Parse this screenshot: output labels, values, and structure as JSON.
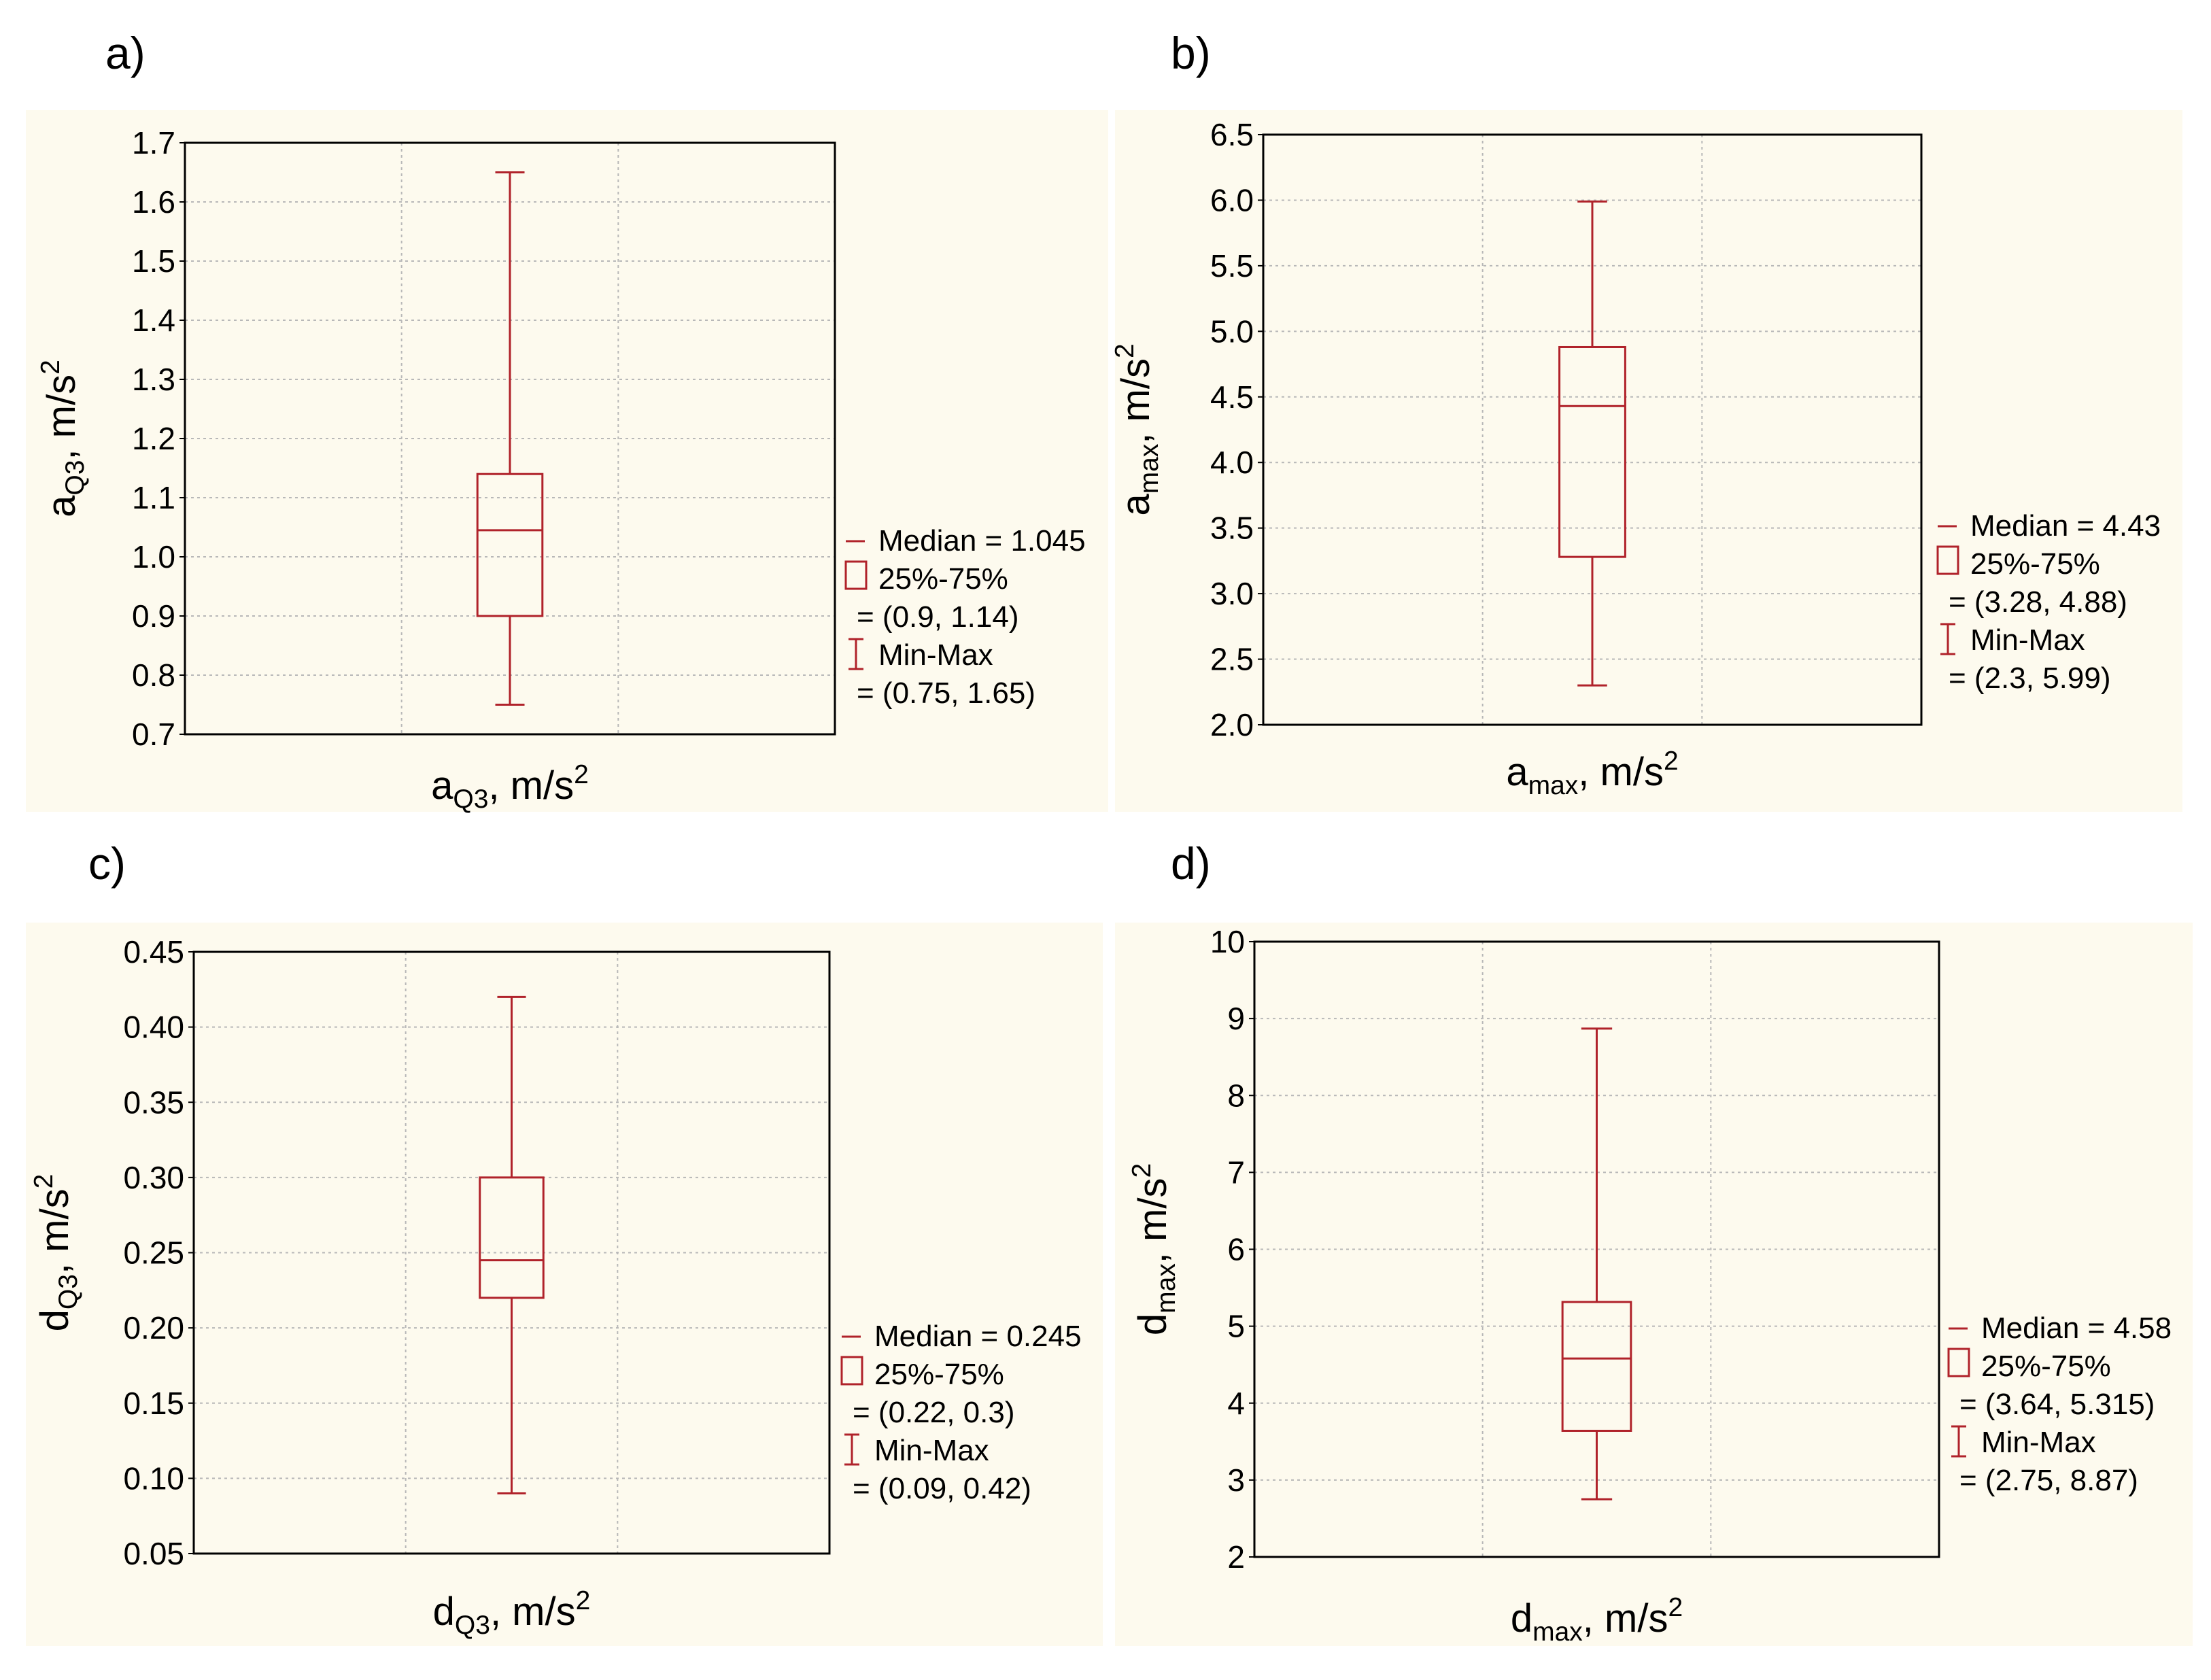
{
  "colors": {
    "box": "#b0222a",
    "background": "#fdfaee",
    "grid": "#b8b8b8",
    "frame": "#000000"
  },
  "chart_data": [
    {
      "id": "a",
      "panel_label": "a)",
      "type": "box",
      "ylabel": {
        "main": "a",
        "sub": "Q3",
        "rest": ", m/s",
        "sup": "2"
      },
      "xlabel": {
        "main": "a",
        "sub": "Q3",
        "rest": ", m/s",
        "sup": "2"
      },
      "ylim": [
        0.7,
        1.7
      ],
      "yticks": [
        "0.7",
        "0.8",
        "0.9",
        "1.0",
        "1.1",
        "1.2",
        "1.3",
        "1.4",
        "1.5",
        "1.6",
        "1.7"
      ],
      "median": 1.045,
      "q1": 0.9,
      "q3": 1.14,
      "min": 0.75,
      "max": 1.65,
      "legend": [
        "Median = 1.045",
        "25%-75%",
        "= (0.9, 1.14)",
        "Min-Max",
        "= (0.75, 1.65)"
      ]
    },
    {
      "id": "b",
      "panel_label": "b)",
      "type": "box",
      "ylabel": {
        "main": "a",
        "sub": "max",
        "rest": ", m/s",
        "sup": "2"
      },
      "xlabel": {
        "main": "a",
        "sub": "max",
        "rest": ", m/s",
        "sup": "2"
      },
      "ylim": [
        2.0,
        6.5
      ],
      "yticks": [
        "2.0",
        "2.5",
        "3.0",
        "3.5",
        "4.0",
        "4.5",
        "5.0",
        "5.5",
        "6.0",
        "6.5"
      ],
      "median": 4.43,
      "q1": 3.28,
      "q3": 4.88,
      "min": 2.3,
      "max": 5.99,
      "legend": [
        "Median = 4.43",
        "25%-75%",
        "= (3.28, 4.88)",
        "Min-Max",
        "= (2.3, 5.99)"
      ]
    },
    {
      "id": "c",
      "panel_label": "c)",
      "type": "box",
      "ylabel": {
        "main": "d",
        "sub": "Q3",
        "rest": ", m/s",
        "sup": "2"
      },
      "xlabel": {
        "main": "d",
        "sub": "Q3",
        "rest": ", m/s",
        "sup": "2"
      },
      "ylim": [
        0.05,
        0.45
      ],
      "yticks": [
        "0.05",
        "0.10",
        "0.15",
        "0.20",
        "0.25",
        "0.30",
        "0.35",
        "0.40",
        "0.45"
      ],
      "median": 0.245,
      "q1": 0.22,
      "q3": 0.3,
      "min": 0.09,
      "max": 0.42,
      "legend": [
        "Median = 0.245",
        "25%-75%",
        "= (0.22, 0.3)",
        "Min-Max",
        "= (0.09, 0.42)"
      ]
    },
    {
      "id": "d",
      "panel_label": "d)",
      "type": "box",
      "ylabel": {
        "main": "d",
        "sub": "max",
        "rest": ", m/s",
        "sup": "2"
      },
      "xlabel": {
        "main": "d",
        "sub": "max",
        "rest": ", m/s",
        "sup": "2"
      },
      "ylim": [
        2,
        10
      ],
      "yticks": [
        "2",
        "3",
        "4",
        "5",
        "6",
        "7",
        "8",
        "9",
        "10"
      ],
      "median": 4.58,
      "q1": 3.64,
      "q3": 5.315,
      "min": 2.75,
      "max": 8.87,
      "legend": [
        "Median = 4.58",
        "25%-75%",
        "= (3.64, 5.315)",
        "Min-Max",
        "= (2.75, 8.87)"
      ]
    }
  ]
}
